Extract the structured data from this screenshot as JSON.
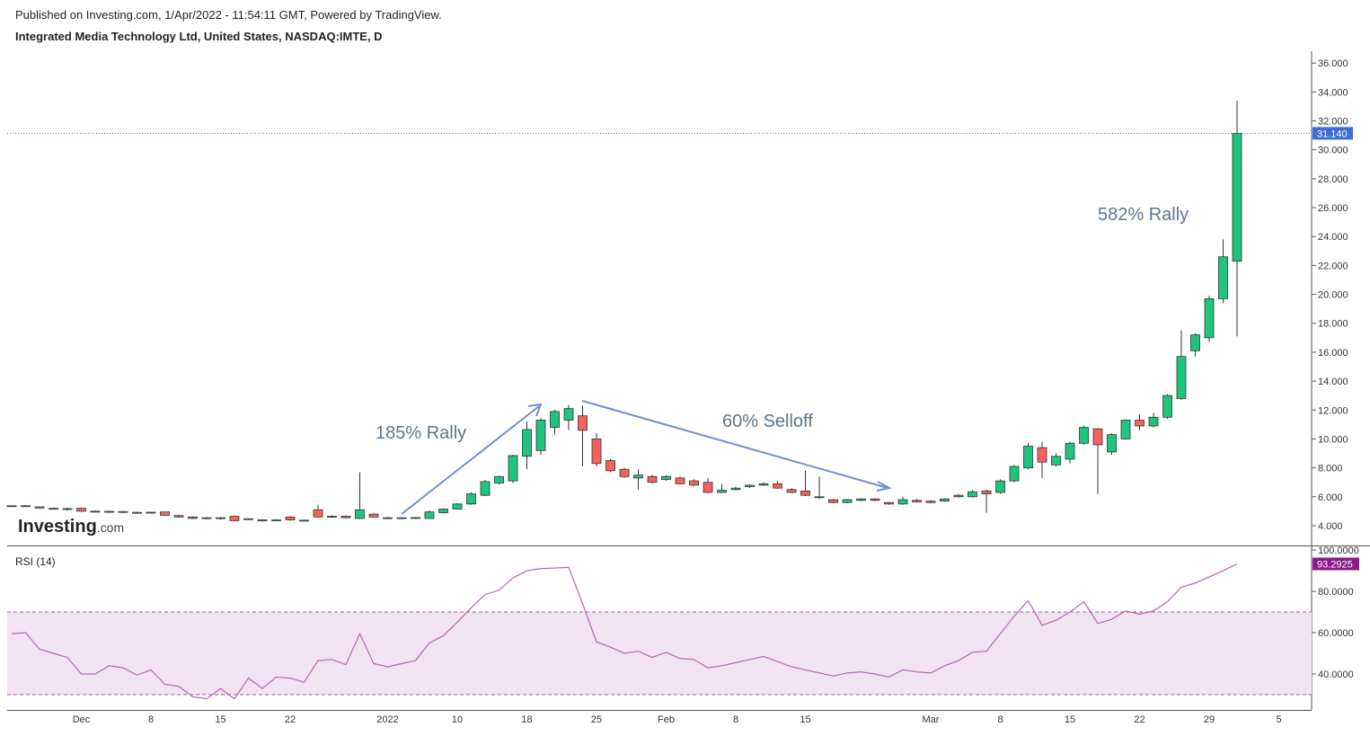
{
  "header": {
    "published": "Published on Investing.com, 1/Apr/2022 - 11:54:11 GMT, Powered by TradingView.",
    "instrument": "Integrated Media Technology Ltd, United States, NASDAQ:IMTE, D"
  },
  "logo": {
    "name": "Investing",
    "domain": ".com"
  },
  "chart_data": [
    {
      "type": "candlestick",
      "categories": [
        null,
        null,
        null,
        null,
        null,
        "Dec",
        null,
        null,
        null,
        null,
        "8",
        null,
        null,
        null,
        null,
        "15",
        null,
        null,
        null,
        null,
        "22",
        null,
        null,
        null,
        null,
        null,
        null,
        "2022",
        null,
        null,
        null,
        null,
        "10",
        null,
        null,
        null,
        null,
        "18",
        null,
        null,
        null,
        null,
        "25",
        null,
        null,
        null,
        null,
        "Feb",
        null,
        null,
        null,
        null,
        "8",
        null,
        null,
        null,
        null,
        "15",
        null,
        null,
        null,
        null,
        null,
        null,
        null,
        null,
        "Mar",
        null,
        null,
        null,
        null,
        "8",
        null,
        null,
        null,
        null,
        "15",
        null,
        null,
        null,
        null,
        "22",
        null,
        null,
        null,
        null,
        "29",
        null,
        null,
        null,
        null,
        "5"
      ],
      "open": [
        5.35,
        5.38,
        5.3,
        5.2,
        5.12,
        5.2,
        5.0,
        4.96,
        4.98,
        4.92,
        4.9,
        4.95,
        4.7,
        4.6,
        4.55,
        4.5,
        4.65,
        4.45,
        4.4,
        4.35,
        4.6,
        4.35,
        5.1,
        4.62,
        4.65,
        4.5,
        4.8,
        4.55,
        4.5,
        4.52,
        4.5,
        4.9,
        5.15,
        5.5,
        6.1,
        6.95,
        7.1,
        8.8,
        9.2,
        10.8,
        11.3,
        11.6,
        10.0,
        8.5,
        7.9,
        7.3,
        7.4,
        7.2,
        7.3,
        7.1,
        7.0,
        6.3,
        6.5,
        6.7,
        6.8,
        6.9,
        6.5,
        6.4,
        5.95,
        5.8,
        5.6,
        5.75,
        5.85,
        5.6,
        5.5,
        5.75,
        5.7,
        5.7,
        6.0,
        6.0,
        6.4,
        6.3,
        7.1,
        8.0,
        9.4,
        8.2,
        8.6,
        9.7,
        10.7,
        9.1,
        10.0,
        11.3,
        10.9,
        11.5,
        12.8,
        16.1,
        17.0,
        19.7,
        22.3,
        null,
        null,
        null
      ],
      "high": [
        5.4,
        5.42,
        5.35,
        5.25,
        5.25,
        5.25,
        5.05,
        5.02,
        5.0,
        4.96,
        4.96,
        4.98,
        4.75,
        4.65,
        4.6,
        4.58,
        4.7,
        4.5,
        4.45,
        4.45,
        4.65,
        4.42,
        5.45,
        4.72,
        4.72,
        7.7,
        4.85,
        4.6,
        4.58,
        4.6,
        5.05,
        5.2,
        5.55,
        6.3,
        7.15,
        7.45,
        8.9,
        11.2,
        11.45,
        12.0,
        12.35,
        12.3,
        10.4,
        8.6,
        8.0,
        7.9,
        7.5,
        7.5,
        7.4,
        7.2,
        7.3,
        6.9,
        6.7,
        6.85,
        7.0,
        7.1,
        6.6,
        7.8,
        7.4,
        5.85,
        5.85,
        5.9,
        5.9,
        5.65,
        6.0,
        5.85,
        5.75,
        5.9,
        6.2,
        6.45,
        6.5,
        7.2,
        8.2,
        9.7,
        9.8,
        9.0,
        9.8,
        10.9,
        10.75,
        10.4,
        11.35,
        11.7,
        11.8,
        13.1,
        17.5,
        17.3,
        19.9,
        23.8,
        33.4,
        null,
        null,
        null
      ],
      "low": [
        5.3,
        5.3,
        5.2,
        5.12,
        5.05,
        4.95,
        4.92,
        4.9,
        4.88,
        4.85,
        4.85,
        4.7,
        4.55,
        4.48,
        4.45,
        4.42,
        4.3,
        4.4,
        4.3,
        4.32,
        4.35,
        4.3,
        4.55,
        4.55,
        4.5,
        4.45,
        4.55,
        4.48,
        4.45,
        4.48,
        4.48,
        4.85,
        5.1,
        5.45,
        6.05,
        6.85,
        6.95,
        7.9,
        8.9,
        10.3,
        10.6,
        8.1,
        8.1,
        7.7,
        7.3,
        6.5,
        6.9,
        7.1,
        6.85,
        6.75,
        6.25,
        6.25,
        6.45,
        6.6,
        6.75,
        6.55,
        6.25,
        6.05,
        5.85,
        5.55,
        5.55,
        5.7,
        5.7,
        5.45,
        5.45,
        5.6,
        5.55,
        5.65,
        5.95,
        5.95,
        4.9,
        6.2,
        7.0,
        7.9,
        7.3,
        8.1,
        8.3,
        9.6,
        6.2,
        8.9,
        9.95,
        10.6,
        10.8,
        11.4,
        12.7,
        15.7,
        16.7,
        19.4,
        17.1,
        null,
        null,
        null
      ],
      "close": [
        5.38,
        5.33,
        5.22,
        5.15,
        5.18,
        5.0,
        4.96,
        4.99,
        4.92,
        4.9,
        4.93,
        4.72,
        4.6,
        4.5,
        4.5,
        4.55,
        4.35,
        4.48,
        4.33,
        4.4,
        4.4,
        4.38,
        4.6,
        4.65,
        4.55,
        5.1,
        4.6,
        4.52,
        4.55,
        4.56,
        4.95,
        5.15,
        5.5,
        6.2,
        7.05,
        7.4,
        8.85,
        10.65,
        11.3,
        11.9,
        12.1,
        10.6,
        8.3,
        7.8,
        7.4,
        7.5,
        7.0,
        7.4,
        6.9,
        6.8,
        6.3,
        6.45,
        6.6,
        6.8,
        6.9,
        6.6,
        6.3,
        6.1,
        6.0,
        5.6,
        5.8,
        5.85,
        5.75,
        5.5,
        5.8,
        5.65,
        5.6,
        5.85,
        6.1,
        6.35,
        6.2,
        7.1,
        8.1,
        9.5,
        8.4,
        8.8,
        9.7,
        10.8,
        9.6,
        10.3,
        11.3,
        10.9,
        11.5,
        13.0,
        15.7,
        17.2,
        19.7,
        22.6,
        31.14,
        null,
        null,
        null
      ],
      "last_value_label": "31.140",
      "up_color": "#1fc47f",
      "down_color": "#f4625e",
      "last_line_color": "#3b6fd6",
      "ylim": [
        2.63,
        36.82
      ],
      "yticks": [
        {
          "value": 4,
          "label": "4.000"
        },
        {
          "value": 6,
          "label": "6.000"
        },
        {
          "value": 8,
          "label": "8.000"
        },
        {
          "value": 10,
          "label": "10.000"
        },
        {
          "value": 12,
          "label": "12.000"
        },
        {
          "value": 14,
          "label": "14.000"
        },
        {
          "value": 16,
          "label": "16.000"
        },
        {
          "value": 18,
          "label": "18.000"
        },
        {
          "value": 20,
          "label": "20.000"
        },
        {
          "value": 22,
          "label": "22.000"
        },
        {
          "value": 24,
          "label": "24.000"
        },
        {
          "value": 26,
          "label": "26.000"
        },
        {
          "value": 28,
          "label": "28.000"
        },
        {
          "value": 30,
          "label": "30.000"
        },
        {
          "value": 32,
          "label": "32.000"
        },
        {
          "value": 34,
          "label": "34.000"
        },
        {
          "value": 36,
          "label": "36.000"
        }
      ],
      "annotations": [
        "185% Rally",
        "60% Selloff",
        "582% Rally"
      ]
    },
    {
      "type": "line",
      "title": "RSI (14)",
      "color": "#b565b5",
      "values": [
        59.5,
        60,
        52,
        50,
        48,
        40,
        40,
        44,
        43,
        39.5,
        42,
        35,
        34,
        29,
        28,
        33,
        28,
        38,
        33,
        38.5,
        38,
        36,
        46.5,
        47,
        44.5,
        59.5,
        45,
        43.5,
        45,
        46.5,
        55,
        58.5,
        65,
        72,
        78.5,
        80.5,
        86.5,
        90,
        91,
        91.3,
        91.6,
        74,
        55.5,
        53,
        50,
        51,
        48,
        50.5,
        47.5,
        47,
        43,
        44,
        45.5,
        47,
        48.5,
        46,
        43.5,
        42,
        40.5,
        39,
        40.5,
        41,
        40,
        38.5,
        42,
        41,
        40.5,
        44,
        46.5,
        50.5,
        51,
        59.5,
        68,
        75.5,
        63.5,
        66,
        70,
        75,
        64.5,
        66.5,
        70.5,
        69,
        70.5,
        75,
        82,
        84,
        87,
        90,
        93.2925,
        null,
        null,
        null
      ],
      "last_value_label": "93.2925",
      "label_color": "#8b1a8b",
      "bands": [
        30,
        70
      ],
      "band_color": "#f2e3f2",
      "band_line_color": "#a05a98",
      "ylim": [
        22.6,
        102.2
      ],
      "yticks": [
        {
          "value": 40,
          "label": "40.0000"
        },
        {
          "value": 60,
          "label": "60.0000"
        },
        {
          "value": 80,
          "label": "80.0000"
        },
        {
          "value": 100,
          "label": "100.0000"
        }
      ]
    }
  ]
}
